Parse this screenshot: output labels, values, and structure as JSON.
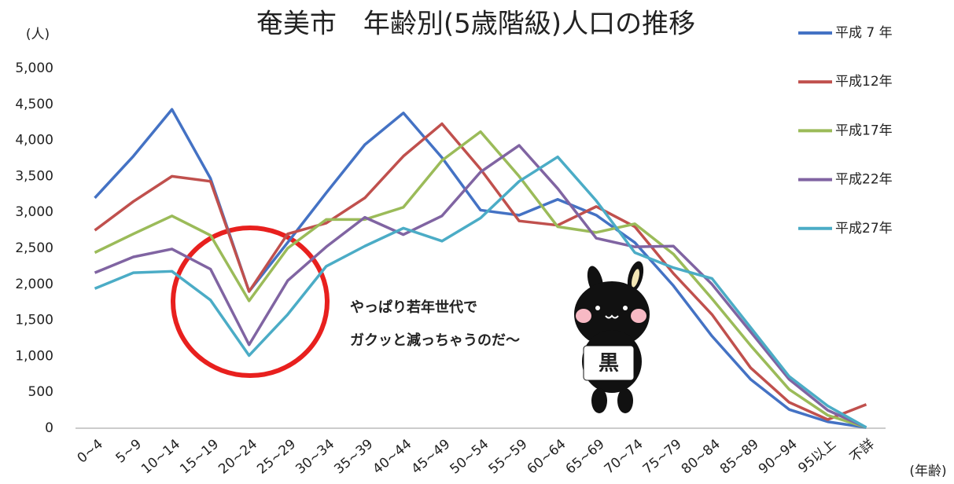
{
  "chart_data": {
    "type": "line",
    "title": "奄美市　年齢別(5歳階級)人口の推移",
    "y_unit": "(人)",
    "x_unit": "(年齢)",
    "annotation_lines": [
      "やっぱり若年世代で",
      "ガクッと減っちゃうのだ～"
    ],
    "mascot_label": "黒",
    "categories": [
      "0~4",
      "5~9",
      "10~14",
      "15~19",
      "20~24",
      "25~29",
      "30~34",
      "35~39",
      "40~44",
      "45~49",
      "50~54",
      "55~59",
      "60~64",
      "65~69",
      "70~74",
      "75~79",
      "80~84",
      "85~89",
      "90~94",
      "95以上",
      "不詳"
    ],
    "series": [
      {
        "name": "平成 7 年",
        "color": "#4472c4",
        "values": [
          3200,
          3780,
          4430,
          3470,
          1900,
          2580,
          3270,
          3940,
          4380,
          3760,
          3030,
          2960,
          3180,
          2960,
          2580,
          1980,
          1280,
          680,
          260,
          90,
          10
        ]
      },
      {
        "name": "平成12年",
        "color": "#c0504d",
        "values": [
          2750,
          3150,
          3500,
          3430,
          1900,
          2700,
          2850,
          3200,
          3780,
          4230,
          3600,
          2880,
          2820,
          3080,
          2800,
          2150,
          1580,
          840,
          360,
          120,
          330
        ]
      },
      {
        "name": "平成17年",
        "color": "#9bbb59",
        "values": [
          2440,
          2700,
          2950,
          2680,
          1770,
          2500,
          2900,
          2900,
          3070,
          3720,
          4120,
          3500,
          2800,
          2720,
          2840,
          2420,
          1800,
          1150,
          540,
          180,
          10
        ]
      },
      {
        "name": "平成22年",
        "color": "#8064a2",
        "values": [
          2160,
          2380,
          2490,
          2210,
          1160,
          2050,
          2520,
          2930,
          2690,
          2950,
          3560,
          3930,
          3330,
          2640,
          2520,
          2530,
          2000,
          1340,
          680,
          250,
          10
        ]
      },
      {
        "name": "平成27年",
        "color": "#4bacc6",
        "values": [
          1940,
          2160,
          2180,
          1780,
          1010,
          1580,
          2250,
          2530,
          2780,
          2600,
          2920,
          3430,
          3770,
          3160,
          2440,
          2230,
          2080,
          1400,
          720,
          310,
          10
        ]
      }
    ],
    "ylim": [
      0,
      5000
    ],
    "yticks": [
      0,
      500,
      {
        "value": 1000,
        "label": "1,000"
      },
      {
        "value": 1500,
        "label": "1,500"
      },
      {
        "value": 2000,
        "label": "2,000"
      },
      {
        "value": 2500,
        "label": "2,500"
      },
      {
        "value": 3000,
        "label": "3,000"
      },
      {
        "value": 3500,
        "label": "3,500"
      },
      {
        "value": 4000,
        "label": "4,000"
      },
      {
        "value": 4500,
        "label": "4,500"
      },
      {
        "value": 5000,
        "label": "5,000"
      }
    ],
    "grid": false,
    "legend": "right"
  }
}
